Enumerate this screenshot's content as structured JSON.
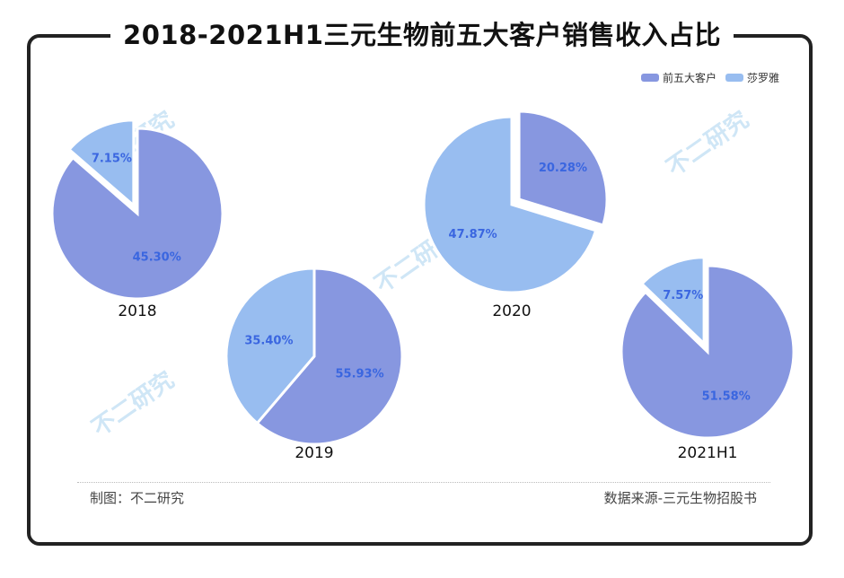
{
  "title": "2018-2021H1三元生物前五大客户销售收入占比",
  "legend": [
    {
      "name": "前五大客户",
      "color": "#8797e0"
    },
    {
      "name": "莎罗雅",
      "color": "#98bdf0"
    }
  ],
  "footer": {
    "credit": "制图：不二研究",
    "source": "数据来源-三元生物招股书"
  },
  "watermark": "不二研究",
  "chart_data": [
    {
      "type": "pie",
      "label": "2018",
      "slices": [
        {
          "name": "前五大客户",
          "value": 45.3,
          "label": "45.30%"
        },
        {
          "name": "莎罗雅",
          "value": 7.15,
          "label": "7.15%"
        }
      ]
    },
    {
      "type": "pie",
      "label": "2019",
      "slices": [
        {
          "name": "前五大客户",
          "value": 55.93,
          "label": "55.93%"
        },
        {
          "name": "莎罗雅",
          "value": 35.4,
          "label": "35.40%"
        }
      ]
    },
    {
      "type": "pie",
      "label": "2020",
      "slices": [
        {
          "name": "前五大客户",
          "value": 20.28,
          "label": "20.28%"
        },
        {
          "name": "莎罗雅",
          "value": 47.87,
          "label": "47.87%"
        }
      ]
    },
    {
      "type": "pie",
      "label": "2021H1",
      "slices": [
        {
          "name": "前五大客户",
          "value": 51.58,
          "label": "51.58%"
        },
        {
          "name": "莎罗雅",
          "value": 7.57,
          "label": "7.57%"
        }
      ]
    }
  ]
}
